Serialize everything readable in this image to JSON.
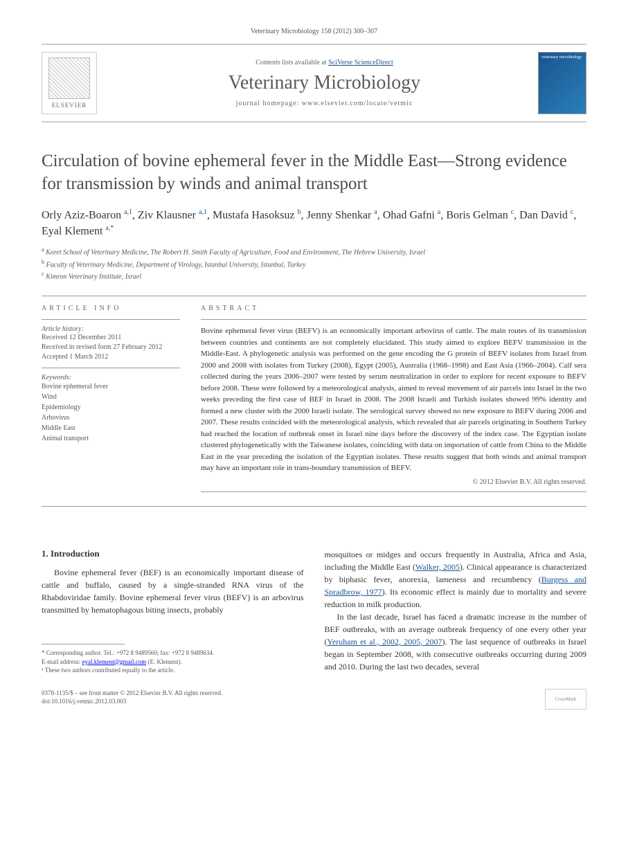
{
  "journal_ref": "Veterinary Microbiology 158 (2012) 300–307",
  "header": {
    "contents_prefix": "Contents lists available at ",
    "contents_link": "SciVerse ScienceDirect",
    "journal_name": "Veterinary Microbiology",
    "homepage_prefix": "journal homepage: ",
    "homepage_url": "www.elsevier.com/locate/vetmic",
    "elsevier_label": "ELSEVIER",
    "cover_label": "veterinary microbiology"
  },
  "title": "Circulation of bovine ephemeral fever in the Middle East—Strong evidence for transmission by winds and animal transport",
  "authors_html": "Orly Aziz-Boaron <sup>a,1</sup>, Ziv Klausner <sup>a,1</sup>, Mustafa Hasoksuz <sup>b</sup>, Jenny Shenkar <sup>a</sup>, Ohad Gafni <sup>a</sup>, Boris Gelman <sup>c</sup>, Dan David <sup>c</sup>, Eyal Klement <sup>a,*</sup>",
  "affiliations": {
    "a": "Koret School of Veterinary Medicine, The Robert H. Smith Faculty of Agriculture, Food and Environment, The Hebrew University, Israel",
    "b": "Faculty of Veterinary Medicine, Department of Virology, Istanbul University, Istanbul, Turkey",
    "c": "Kimron Veterinary Institute, Israel"
  },
  "article_info": {
    "heading": "ARTICLE INFO",
    "history_label": "Article history:",
    "received": "Received 12 December 2011",
    "revised": "Received in revised form 27 February 2012",
    "accepted": "Accepted 1 March 2012",
    "keywords_label": "Keywords:",
    "keywords": [
      "Bovine ephemeral fever",
      "Wind",
      "Epidemiology",
      "Arbovirus",
      "Middle East",
      "Animal transport"
    ]
  },
  "abstract": {
    "heading": "ABSTRACT",
    "text": "Bovine ephemeral fever virus (BEFV) is an economically important arbovirus of cattle. The main routes of its transmission between countries and continents are not completely elucidated. This study aimed to explore BEFV transmission in the Middle-East. A phylogenetic analysis was performed on the gene encoding the G protein of BEFV isolates from Israel from 2000 and 2008 with isolates from Turkey (2008), Egypt (2005), Australia (1968–1998) and East Asia (1966–2004). Calf sera collected during the years 2006–2007 were tested by serum neutralization in order to explore for recent exposure to BEFV before 2008. These were followed by a meteorological analysis, aimed to reveal movement of air parcels into Israel in the two weeks preceding the first case of BEF in Israel in 2008. The 2008 Israeli and Turkish isolates showed 99% identity and formed a new cluster with the 2000 Israeli isolate. The serological survey showed no new exposure to BEFV during 2006 and 2007. These results coincided with the meteorological analysis, which revealed that air parcels originating in Southern Turkey had reached the location of outbreak onset in Israel nine days before the discovery of the index case. The Egyptian isolate clustered phylogenetically with the Taiwanese isolates, coinciding with data on importation of cattle from China to the Middle East in the year preceding the isolation of the Egyptian isolates. These results suggest that both winds and animal transport may have an important role in trans-boundary transmission of BEFV.",
    "copyright": "© 2012 Elsevier B.V. All rights reserved."
  },
  "body": {
    "section1_heading": "1. Introduction",
    "para1": "Bovine ephemeral fever (BEF) is an economically important disease of cattle and buffalo, caused by a single-stranded RNA virus of the Rhabdoviridae family. Bovine ephemeral fever virus (BEFV) is an arbovirus transmitted by hematophagous biting insects, probably",
    "para2_pre": "mosquitoes or midges and occurs frequently in Australia, Africa and Asia, including the Middle East (",
    "para2_cite1": "Walker, 2005",
    "para2_mid1": "). Clinical appearance is characterized by biphasic fever, anorexia, lameness and recumbency (",
    "para2_cite2": "Burgess and Spradbrow, 1977",
    "para2_mid2": "). Its economic effect is mainly due to mortality and severe reduction in milk production.",
    "para3_pre": "In the last decade, Israel has faced a dramatic increase in the number of BEF outbreaks, with an average outbreak frequency of one every other year (",
    "para3_cite1": "Yeruham et al., 2002, 2005, 2007",
    "para3_post": "). The last sequence of outbreaks in Israel began in September 2008, with consecutive outbreaks occurring during 2009 and 2010. During the last two decades, several"
  },
  "footnotes": {
    "corresponding": "* Corresponding author. Tel.: +972 8 9489560; fax: +972 8 9489634.",
    "email_label": "E-mail address: ",
    "email": "eyal.klement@gmail.com",
    "email_name": " (E. Klement).",
    "equal": "¹ These two authors contributed equally to the article."
  },
  "footer": {
    "issn": "0378-1135/$ – see front matter © 2012 Elsevier B.V. All rights reserved.",
    "doi": "doi:10.1016/j.vetmic.2012.03.003"
  }
}
